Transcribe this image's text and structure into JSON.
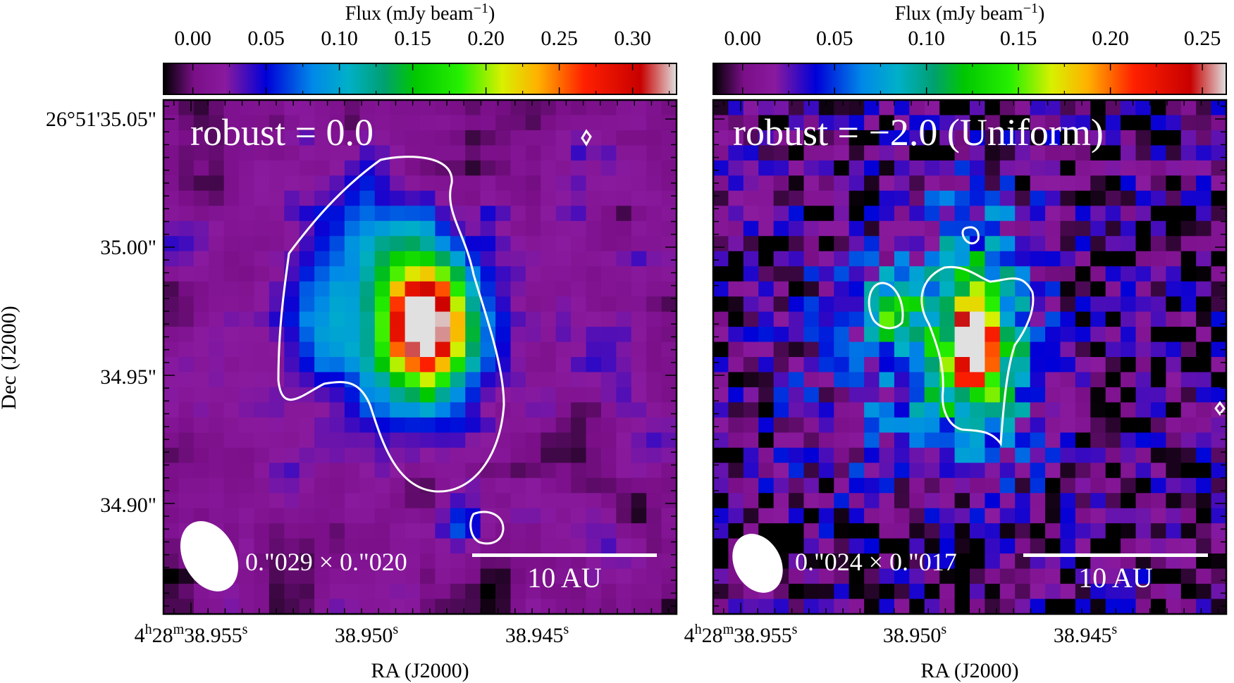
{
  "chart_data": [
    {
      "type": "heatmap",
      "title": "robust = 0.0",
      "colorbar": {
        "label_pre": "Flux (mJy beam",
        "label_sup": "−1",
        "label_post": ")",
        "ticks": [
          "0.00",
          "0.05",
          "0.10",
          "0.15",
          "0.20",
          "0.25",
          "0.30"
        ],
        "tick_values": [
          0.0,
          0.05,
          0.1,
          0.15,
          0.2,
          0.25,
          0.3
        ],
        "range": [
          -0.02,
          0.33
        ]
      },
      "ylabel": "Dec (J2000)",
      "xlabel": "RA (J2000)",
      "yticks": [
        "26°51'35.05\"",
        "35.00\"",
        "34.95\"",
        "34.90\""
      ],
      "xticks": [
        {
          "main": "4",
          "h": "h",
          "m_val": "28",
          "m": "m",
          "s_val": "38.955",
          "s": "s"
        },
        {
          "main": "38.950",
          "s": "s"
        },
        {
          "main": "38.945",
          "s": "s"
        }
      ],
      "beam_label": "0.\"029 × 0.\"020",
      "scale_label": "10 AU",
      "peak_mJy": 0.32,
      "contour_level_mJy": 0.065
    },
    {
      "type": "heatmap",
      "title": "robust = −2.0 (Uniform)",
      "colorbar": {
        "label_pre": "Flux (mJy beam",
        "label_sup": "−1",
        "label_post": ")",
        "ticks": [
          "0.00",
          "0.05",
          "0.10",
          "0.15",
          "0.20",
          "0.25"
        ],
        "tick_values": [
          0.0,
          0.05,
          0.1,
          0.15,
          0.2,
          0.25
        ],
        "range": [
          -0.016,
          0.263
        ]
      },
      "xlabel": "RA (J2000)",
      "xticks": [
        {
          "main": "4",
          "h": "h",
          "m_val": "28",
          "m": "m",
          "s_val": "38.955",
          "s": "s"
        },
        {
          "main": "38.950",
          "s": "s"
        },
        {
          "main": "38.945",
          "s": "s"
        }
      ],
      "beam_label": "0.\"024 × 0.\"017",
      "scale_label": "10 AU",
      "peak_mJy": 0.26,
      "contour_level_mJy": 0.17
    }
  ]
}
